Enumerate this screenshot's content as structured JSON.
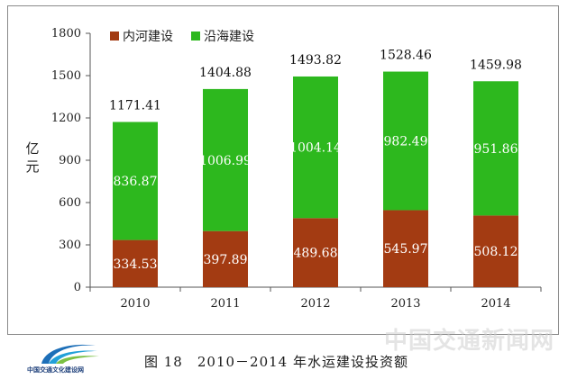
{
  "chart_data": {
    "type": "bar",
    "stacked": true,
    "categories": [
      "2010",
      "2011",
      "2012",
      "2013",
      "2014"
    ],
    "series": [
      {
        "name": "内河建设",
        "values": [
          334.53,
          397.89,
          489.68,
          545.97,
          508.12
        ]
      },
      {
        "name": "沿海建设",
        "values": [
          836.87,
          1006.99,
          1004.14,
          982.49,
          951.86
        ]
      }
    ],
    "totals": [
      "1171.41",
      "1404.88",
      "1493.82",
      "1528.46",
      "1459.98"
    ],
    "ylabel": "亿元",
    "ylim": [
      0,
      1800
    ],
    "yticks": [
      0,
      300,
      600,
      900,
      1200,
      1500,
      1800
    ],
    "legend": "top-left",
    "grid": false,
    "colors": {
      "内河建设": "#a33b12",
      "沿海建设": "#2db81e"
    }
  },
  "caption": "图 18　2010－2014 年水运建设投资额",
  "logo_text": "中国交通文化建设网",
  "watermark": "中国交通新闻网"
}
